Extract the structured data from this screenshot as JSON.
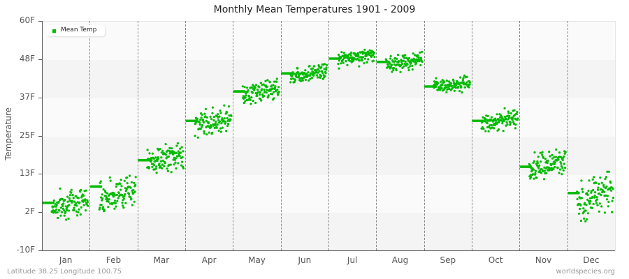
{
  "chart_data": {
    "type": "scatter",
    "title": "Monthly Mean Temperatures 1901 - 2009",
    "xlabel": "",
    "ylabel": "Temperature",
    "categories": [
      "Jan",
      "Feb",
      "Mar",
      "Apr",
      "May",
      "Jun",
      "Jul",
      "Aug",
      "Sep",
      "Oct",
      "Nov",
      "Dec"
    ],
    "y_ticks": [
      "60F",
      "48F",
      "37F",
      "25F",
      "13F",
      "2F",
      "-10F"
    ],
    "ylim": [
      -10,
      60
    ],
    "grid": "alternating horizontal bands; dashed vertical month separators",
    "legend": {
      "entries": [
        "Mean Temp"
      ],
      "position": "top-left"
    },
    "series": [
      {
        "name": "Mean Temp",
        "color": "#00bb00",
        "mean_values": [
          4.5,
          7.5,
          18,
          29.5,
          38.5,
          44,
          49,
          47.5,
          40.5,
          29.5,
          16,
          7
        ],
        "long_term_mean": [
          4.5,
          9.5,
          17.5,
          29.5,
          38.5,
          44,
          48.5,
          47.5,
          40,
          29.5,
          15.5,
          7.5
        ],
        "min_values": [
          -4.5,
          0,
          11,
          23,
          33,
          40,
          45.5,
          43.5,
          37,
          25.5,
          9,
          -6
        ],
        "max_values": [
          9,
          15,
          23.5,
          35,
          43,
          48,
          53,
          51.5,
          43.5,
          34,
          22,
          14
        ]
      }
    ]
  },
  "annotations": {
    "footer_left": "Latitude 38.25 Longitude 100.75",
    "footer_right": "worldspecies.org"
  }
}
